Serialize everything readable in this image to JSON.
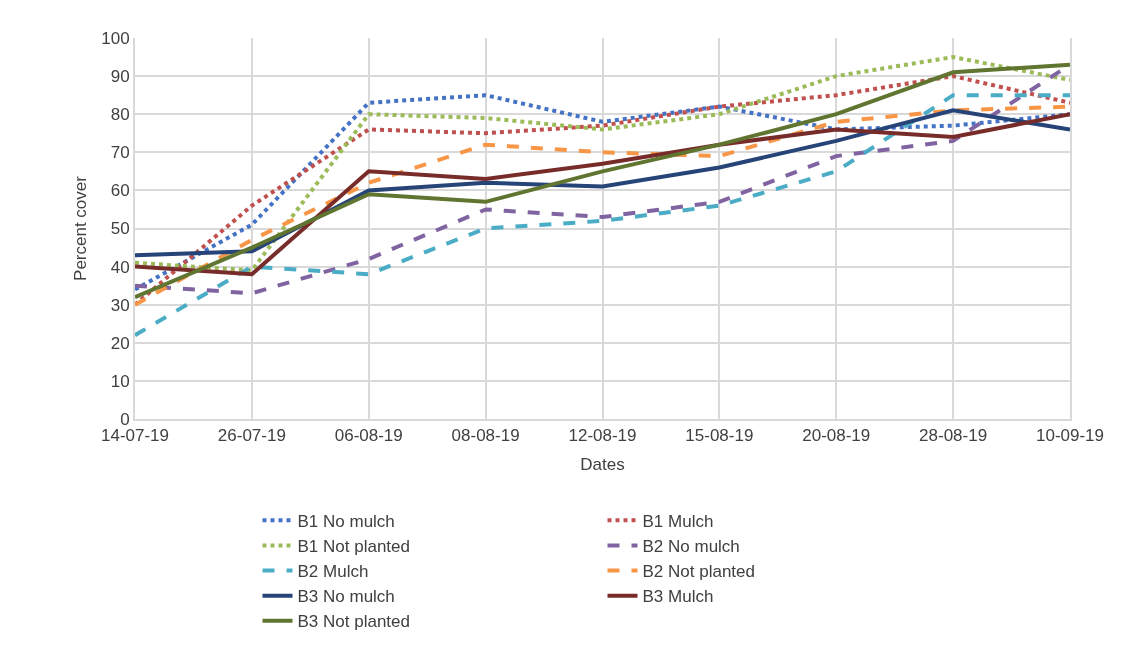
{
  "chart_data": {
    "type": "line",
    "xlabel": "Dates",
    "ylabel": "Percent cover",
    "categories": [
      "14-07-19",
      "26-07-19",
      "06-08-19",
      "08-08-19",
      "12-08-19",
      "15-08-19",
      "20-08-19",
      "28-08-19",
      "10-09-19"
    ],
    "series": [
      {
        "name": "B1 No mulch",
        "color": "#4472c4",
        "line_style": "dotted",
        "values": [
          34,
          51,
          83,
          85,
          78,
          82,
          76,
          77,
          80
        ]
      },
      {
        "name": "B1 Mulch",
        "color": "#c0504d",
        "line_style": "dotted",
        "values": [
          30,
          56,
          76,
          75,
          77,
          82,
          85,
          90,
          83
        ]
      },
      {
        "name": "B1 Not planted",
        "color": "#9bbb59",
        "line_style": "dotted",
        "values": [
          41,
          39,
          80,
          79,
          76,
          80,
          90,
          95,
          89
        ]
      },
      {
        "name": "B2 No mulch",
        "color": "#8064a2",
        "line_style": "dashed",
        "values": [
          35,
          33,
          42,
          55,
          53,
          57,
          69,
          73,
          93
        ]
      },
      {
        "name": "B2 Mulch",
        "color": "#4bacc6",
        "line_style": "dashed",
        "values": [
          22,
          40,
          38,
          50,
          52,
          56,
          65,
          85,
          85
        ]
      },
      {
        "name": "B2 Not planted",
        "color": "#f79646",
        "line_style": "dashed",
        "values": [
          30,
          47,
          62,
          72,
          70,
          69,
          78,
          81,
          82
        ]
      },
      {
        "name": "B3 No mulch",
        "color": "#264478",
        "line_style": "solid",
        "values": [
          43,
          44,
          60,
          62,
          61,
          66,
          73,
          81,
          76
        ]
      },
      {
        "name": "B3 Mulch",
        "color": "#772c2a",
        "line_style": "solid",
        "values": [
          40,
          38,
          65,
          63,
          67,
          72,
          76,
          74,
          80
        ]
      },
      {
        "name": "B3 Not planted",
        "color": "#5f7530",
        "line_style": "solid",
        "values": [
          32,
          45,
          59,
          57,
          65,
          72,
          80,
          91,
          93
        ]
      }
    ],
    "ylim": [
      0,
      100
    ],
    "yticks": [
      0,
      10,
      20,
      30,
      40,
      50,
      60,
      70,
      80,
      90,
      100
    ],
    "grid": true,
    "legend": "bottom"
  }
}
